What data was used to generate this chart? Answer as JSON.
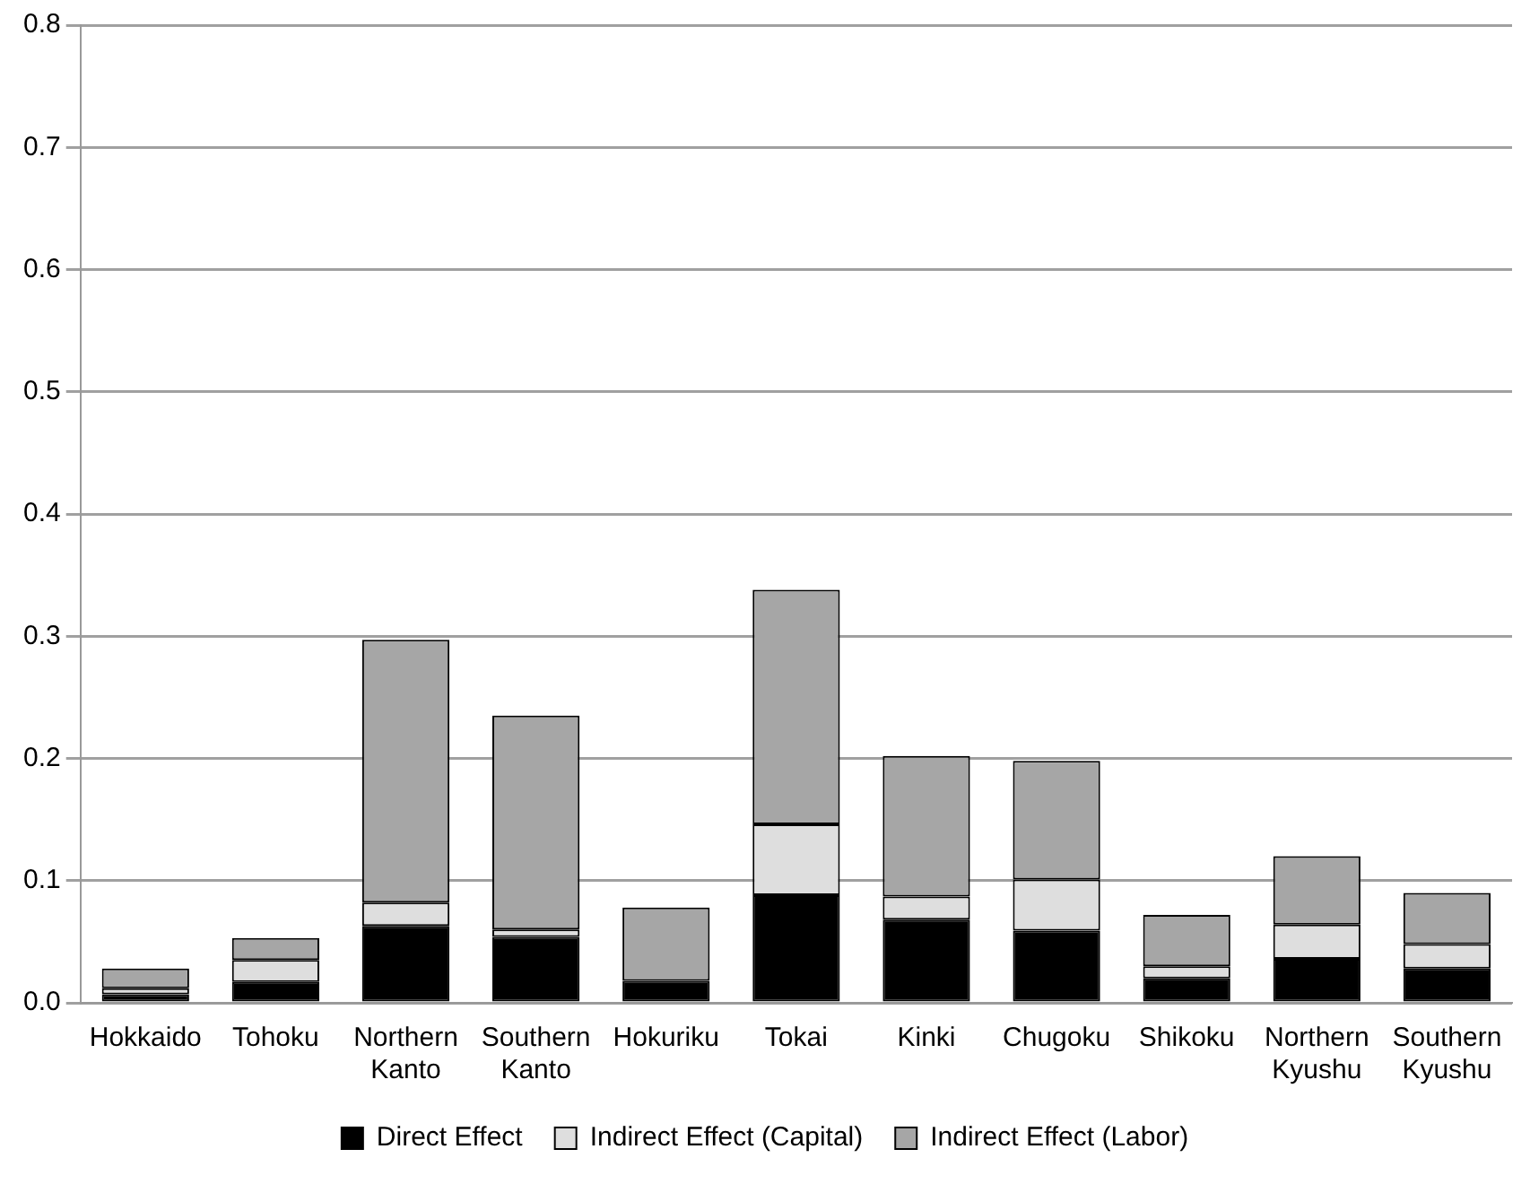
{
  "chart_data": {
    "type": "bar",
    "stacked": true,
    "categories": [
      "Hokkaido",
      "Tohoku",
      "Northern Kanto",
      "Southern Kanto",
      "Hokuriku",
      "Tokai",
      "Kinki",
      "Chugoku",
      "Shikoku",
      "Northern Kyushu",
      "Southern Kyushu"
    ],
    "series": [
      {
        "name": "Direct Effect",
        "color": "#000000",
        "values": [
          0.007,
          0.017,
          0.063,
          0.054,
          0.018,
          0.088,
          0.068,
          0.059,
          0.02,
          0.036,
          0.028
        ]
      },
      {
        "name": "Indirect Effect (Capital)",
        "color": "#dedede",
        "values": [
          0.005,
          0.018,
          0.019,
          0.006,
          0.0,
          0.058,
          0.019,
          0.042,
          0.01,
          0.028,
          0.02
        ]
      },
      {
        "name": "Indirect Effect (Labor)",
        "color": "#a6a6a6",
        "values": [
          0.016,
          0.018,
          0.215,
          0.175,
          0.06,
          0.192,
          0.115,
          0.097,
          0.042,
          0.056,
          0.042
        ]
      }
    ],
    "ylim": [
      0,
      0.8
    ],
    "yticks": [
      {
        "value": 0,
        "label": "0.0"
      },
      0.1,
      0.2,
      0.3,
      0.4,
      0.5,
      0.6,
      0.7,
      0.8
    ],
    "grid": "y",
    "legend": "bottom"
  }
}
